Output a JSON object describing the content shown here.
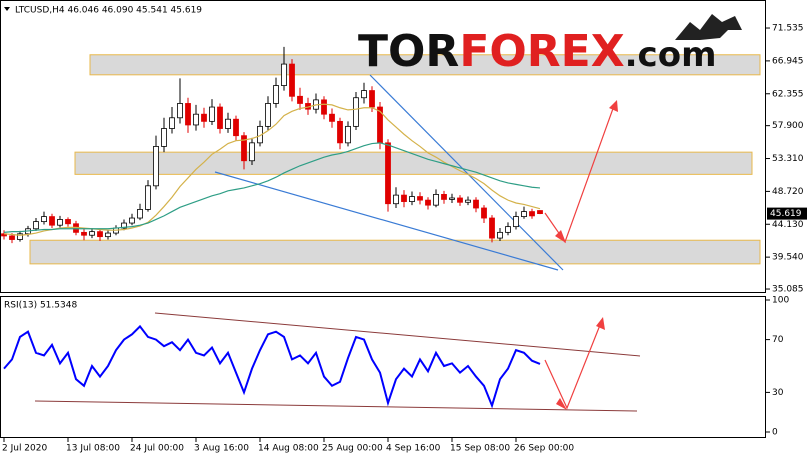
{
  "chart_data": [
    {
      "type": "candlestick",
      "title": "LTCUSD,H4  46.046 46.090 45.541 45.619",
      "logo": {
        "part1": "TOR",
        "part2": "FOREX",
        "part3": ".com"
      },
      "ylim": [
        34.95,
        74.89
      ],
      "yticks": [
        71.535,
        66.945,
        62.355,
        {
          "value": 57.9,
          "label": "57.900"
        },
        {
          "value": 53.31,
          "label": "53.310"
        },
        {
          "value": 48.72,
          "label": "48.720"
        },
        {
          "value": 44.13,
          "label": "44.130"
        },
        {
          "value": 39.54,
          "label": "39.540"
        },
        35.085
      ],
      "last_price": {
        "value": 45.619,
        "label": "45.619"
      },
      "up_color": "#000000",
      "down_color": "#e00000",
      "candles": [
        [
          42.8,
          43.3,
          42.0,
          42.5
        ],
        [
          42.5,
          42.9,
          41.5,
          42.0
        ],
        [
          42.0,
          43.2,
          41.7,
          42.8
        ],
        [
          42.8,
          43.9,
          42.4,
          43.5
        ],
        [
          43.5,
          45.0,
          43.2,
          44.5
        ],
        [
          44.5,
          45.9,
          44.1,
          45.2
        ],
        [
          45.2,
          45.6,
          43.6,
          44.0
        ],
        [
          44.0,
          45.3,
          43.7,
          44.8
        ],
        [
          44.8,
          45.1,
          43.8,
          44.2
        ],
        [
          44.2,
          44.6,
          42.6,
          43.0
        ],
        [
          43.0,
          43.5,
          41.9,
          42.6
        ],
        [
          42.6,
          43.6,
          42.2,
          43.1
        ],
        [
          43.1,
          43.5,
          41.8,
          42.4
        ],
        [
          42.4,
          43.3,
          42.0,
          42.9
        ],
        [
          42.9,
          44.0,
          42.6,
          43.6
        ],
        [
          43.6,
          44.8,
          43.3,
          44.3
        ],
        [
          44.3,
          45.6,
          44.0,
          45.0
        ],
        [
          45.0,
          47.0,
          44.7,
          46.2
        ],
        [
          46.2,
          50.3,
          45.9,
          49.5
        ],
        [
          49.5,
          56.5,
          49.0,
          55.0
        ],
        [
          55.0,
          59.0,
          54.2,
          57.5
        ],
        [
          57.5,
          60.5,
          56.8,
          59.0
        ],
        [
          59.0,
          64.5,
          58.2,
          61.0
        ],
        [
          61.0,
          61.8,
          56.9,
          58.0
        ],
        [
          58.0,
          60.8,
          57.2,
          59.5
        ],
        [
          59.5,
          60.4,
          57.6,
          58.5
        ],
        [
          58.5,
          61.6,
          58.0,
          60.5
        ],
        [
          60.5,
          61.0,
          56.8,
          57.5
        ],
        [
          57.5,
          59.7,
          56.9,
          58.8
        ],
        [
          58.8,
          59.3,
          55.8,
          56.5
        ],
        [
          56.5,
          57.0,
          51.8,
          53.0
        ],
        [
          53.0,
          56.2,
          52.4,
          55.5
        ],
        [
          55.5,
          58.6,
          55.0,
          57.8
        ],
        [
          57.8,
          62.0,
          57.2,
          61.0
        ],
        [
          61.0,
          64.6,
          60.4,
          63.5
        ],
        [
          63.5,
          68.9,
          62.8,
          66.5
        ],
        [
          66.5,
          67.2,
          61.3,
          62.0
        ],
        [
          62.0,
          63.2,
          60.1,
          61.0
        ],
        [
          61.0,
          61.8,
          59.4,
          60.2
        ],
        [
          60.2,
          62.4,
          59.6,
          61.5
        ],
        [
          61.5,
          62.0,
          58.8,
          59.5
        ],
        [
          59.5,
          60.3,
          57.6,
          58.5
        ],
        [
          58.5,
          59.0,
          54.6,
          55.5
        ],
        [
          55.5,
          58.5,
          55.0,
          57.8
        ],
        [
          57.8,
          62.6,
          57.3,
          61.8
        ],
        [
          61.8,
          63.9,
          61.0,
          62.8
        ],
        [
          62.8,
          63.4,
          59.8,
          60.5
        ],
        [
          60.5,
          61.2,
          54.6,
          55.5
        ],
        [
          55.5,
          56.0,
          45.9,
          47.0
        ],
        [
          47.0,
          49.3,
          46.4,
          48.2
        ],
        [
          48.2,
          48.9,
          46.5,
          47.3
        ],
        [
          47.3,
          48.7,
          46.8,
          48.0
        ],
        [
          48.0,
          48.6,
          46.9,
          47.5
        ],
        [
          47.5,
          47.9,
          46.2,
          46.8
        ],
        [
          46.8,
          49.0,
          46.5,
          48.3
        ],
        [
          48.3,
          48.8,
          47.0,
          47.6
        ],
        [
          47.6,
          48.4,
          47.1,
          47.8
        ],
        [
          47.8,
          48.2,
          46.7,
          47.2
        ],
        [
          47.2,
          48.0,
          46.8,
          47.5
        ],
        [
          47.5,
          47.9,
          45.8,
          46.4
        ],
        [
          46.4,
          46.8,
          44.3,
          45.0
        ],
        [
          45.0,
          45.4,
          41.6,
          42.2
        ],
        [
          42.2,
          43.6,
          41.8,
          43.0
        ],
        [
          43.0,
          44.4,
          42.6,
          43.8
        ],
        [
          43.8,
          45.9,
          43.4,
          45.2
        ],
        [
          45.2,
          46.6,
          44.9,
          45.9
        ],
        [
          45.9,
          46.3,
          44.9,
          45.3
        ],
        [
          46.046,
          46.09,
          45.541,
          45.619
        ]
      ],
      "series": [
        {
          "color": "#d4b24a",
          "values": [
            42.8,
            42.7,
            42.6,
            42.7,
            42.9,
            43.2,
            43.4,
            43.6,
            43.7,
            43.7,
            43.6,
            43.5,
            43.4,
            43.3,
            43.3,
            43.4,
            43.6,
            43.9,
            44.4,
            45.4,
            46.6,
            47.9,
            49.4,
            50.6,
            51.8,
            52.8,
            53.9,
            54.6,
            55.4,
            55.8,
            55.9,
            56.1,
            56.5,
            57.2,
            58.1,
            59.3,
            59.9,
            60.3,
            60.5,
            60.8,
            60.9,
            60.8,
            60.4,
            60.1,
            60.2,
            60.4,
            60.4,
            59.9,
            58.7,
            57.7,
            56.7,
            55.8,
            55.0,
            54.1,
            53.5,
            52.8,
            52.2,
            51.6,
            51.1,
            50.5,
            49.8,
            48.9,
            48.1,
            47.5,
            47.1,
            46.9,
            46.6,
            46.3
          ]
        },
        {
          "color": "#2e9e86",
          "values": [
            43.0,
            43.1,
            43.1,
            43.2,
            43.3,
            43.4,
            43.4,
            43.5,
            43.5,
            43.5,
            43.5,
            43.5,
            43.5,
            43.5,
            43.6,
            43.7,
            43.8,
            44.0,
            44.3,
            44.8,
            45.3,
            45.9,
            46.5,
            46.9,
            47.3,
            47.7,
            48.1,
            48.4,
            48.8,
            49.0,
            49.2,
            49.5,
            49.8,
            50.2,
            50.7,
            51.3,
            51.8,
            52.3,
            52.7,
            53.1,
            53.5,
            53.8,
            54.0,
            54.3,
            54.7,
            55.1,
            55.4,
            55.5,
            55.2,
            54.8,
            54.4,
            54.0,
            53.6,
            53.2,
            52.9,
            52.6,
            52.3,
            52.0,
            51.7,
            51.4,
            51.0,
            50.6,
            50.2,
            49.9,
            49.7,
            49.5,
            49.3,
            49.2
          ]
        }
      ],
      "zones": [
        [
          65.0,
          67.8
        ],
        [
          51.1,
          54.2
        ],
        [
          38.6,
          41.9
        ]
      ],
      "zone_color": "#d9d9d9",
      "xticks": [
        {
          "value": 0,
          "label": "2 Jul 2020"
        },
        {
          "value": 8,
          "label": "13 Jul 08:00"
        },
        {
          "value": 16,
          "label": "24 Jul 00:00"
        },
        {
          "value": 24,
          "label": "3 Aug 16:00"
        },
        {
          "value": 32,
          "label": "14 Aug 08:00"
        },
        {
          "value": 40,
          "label": "25 Aug 00:00"
        },
        {
          "value": 48,
          "label": "4 Sep 16:00"
        },
        {
          "value": 56,
          "label": "15 Sep 08:00"
        },
        {
          "value": 64,
          "label": "26 Sep 00:00"
        }
      ]
    },
    {
      "type": "line",
      "title": "RSI(13) 51.5348",
      "ylim": [
        0,
        100
      ],
      "yticks": [
        100,
        70,
        30,
        0
      ],
      "series": [
        {
          "color": "#0000ff",
          "values": [
            48,
            55,
            72,
            76,
            60,
            58,
            66,
            52,
            60,
            40,
            35,
            50,
            42,
            50,
            62,
            70,
            74,
            80,
            72,
            70,
            65,
            68,
            62,
            70,
            60,
            58,
            64,
            52,
            60,
            45,
            30,
            48,
            62,
            74,
            76,
            72,
            55,
            58,
            52,
            60,
            42,
            35,
            38,
            56,
            72,
            70,
            55,
            45,
            22,
            40,
            48,
            42,
            55,
            46,
            60,
            50,
            52,
            45,
            50,
            42,
            35,
            20,
            40,
            48,
            62,
            60,
            54,
            51.5348
          ]
        }
      ]
    }
  ]
}
